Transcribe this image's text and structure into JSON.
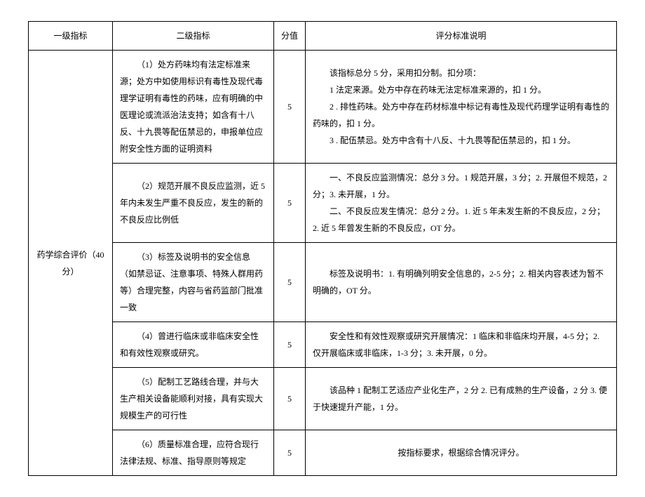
{
  "headers": {
    "c1": "一级指标",
    "c2": "二级指标",
    "c3": "分值",
    "c4": "评分标准说明"
  },
  "level1": "药学综合评价（40 分）",
  "rows": [
    {
      "l2_a": "（1）处方药味均有法定标准来源；处方中如使用标识有毒性及现代毒理学证明有毒性的药味，应有明确的中医理论或流派治法支持；如含有十八反、十九畏等配伍禁忌的，申报单位应附安全性方面的证明资料",
      "score": "5",
      "d1": "该指标总分 5 分，采用扣分制。扣分项：",
      "d2": "1 法定来源。处方中存在药味无法定标准来源的，扣 1 分。",
      "d3": "2 . 排性药味。处方中存在药材标准中标记有毒性及现代药理学证明有毒性的药味的，扣 1 分。",
      "d4": "3    . 配伍禁忌。处方中含有十八反、十九畏等配伍禁忌的，扣 1 分。"
    },
    {
      "l2_a": "（2）规范开展不良反应监测，近 5 年内未发生严重不良反应，发生的新的不良反应比例低",
      "score": "5",
      "d1": "一、不良反应监测情况：总分 3 分。1 规范开展，3 分；2. 开展但不规范，2 分；3. 未开展，1 分。",
      "d2": "二、不良反应发生情况：总分 2 分。1. 近 5 年未发生新的不良反应，2 分；2. 近 5 年曾发生新的不良反应，OT 分。"
    },
    {
      "l2_a": "（3）标签及说明书的安全信息（如禁忌证、注意事项、特殊人群用药等）合理完整，内容与省药监部门批准一致",
      "score": "5",
      "d1": "标签及说明书：1. 有明确列明安全信息的，2-5 分；2. 相关内容表述为暂不明确的，OT 分。"
    },
    {
      "l2_a": "（4）曾进行临床或非临床安全性和有效性观察或研究。",
      "score": "5",
      "d1": "安全性和有效性观察或研究开展情况：1 临床和非临床均开展，4-5 分；2. 仅开展临床或非临床，1-3 分；3. 未开展，0 分。"
    },
    {
      "l2_a": "（5）配制工艺路线合理，并与大生产相关设备能顺利对接，具有实现大规模生产的可行性",
      "score": "5",
      "d1": "该品种 1 配制工艺适应产业化生产，2 分 2. 已有成熟的生产设备，2 分 3. 便于快速提升产能，1 分。"
    },
    {
      "l2_a": "（6）质量标准合理，应符合现行法律法规、标准、指导原则等规定",
      "score": "5",
      "d1": "按指标要求，根据综合情况评分。"
    }
  ]
}
